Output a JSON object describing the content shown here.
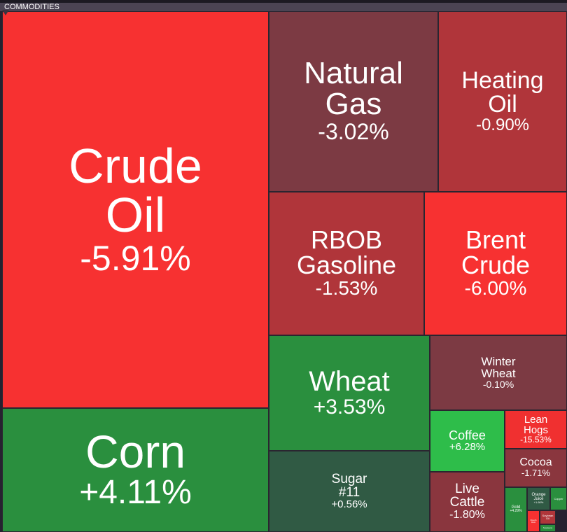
{
  "header": {
    "title": "COMMODITIES"
  },
  "colors": {
    "strong_red": "#f73131",
    "red": "#b0353a",
    "dark_red": "#7c3a43",
    "green": "#2a8f3e",
    "bright_green": "#2ebd4a",
    "dark_green": "#305a44"
  },
  "tiles": [
    {
      "name": "Crude Oil",
      "change": "-5.91%"
    },
    {
      "name": "Corn",
      "change": "+4.11%"
    },
    {
      "name": "Natural Gas",
      "change": "-3.02%"
    },
    {
      "name": "Heating Oil",
      "change": "-0.90%"
    },
    {
      "name": "RBOB Gasoline",
      "change": "-1.53%"
    },
    {
      "name": "Brent Crude",
      "change": "-6.00%"
    },
    {
      "name": "Wheat",
      "change": "+3.53%"
    },
    {
      "name": "Winter Wheat",
      "change": "-0.10%"
    },
    {
      "name": "Sugar #11",
      "change": "+0.56%"
    },
    {
      "name": "Coffee",
      "change": "+6.28%"
    },
    {
      "name": "Lean Hogs",
      "change": "-15.53%"
    },
    {
      "name": "Cocoa",
      "change": "-1.71%"
    },
    {
      "name": "Live Cattle",
      "change": "-1.80%"
    },
    {
      "name": "Gold",
      "change": "+4.29%"
    },
    {
      "name": "Orange Juice",
      "change": "+1.60%"
    },
    {
      "name": "Copper",
      "change": ""
    },
    {
      "name": "Rough Rice",
      "change": ""
    },
    {
      "name": "Soybean Oil",
      "change": ""
    },
    {
      "name": "Soybeans",
      "change": ""
    }
  ]
}
